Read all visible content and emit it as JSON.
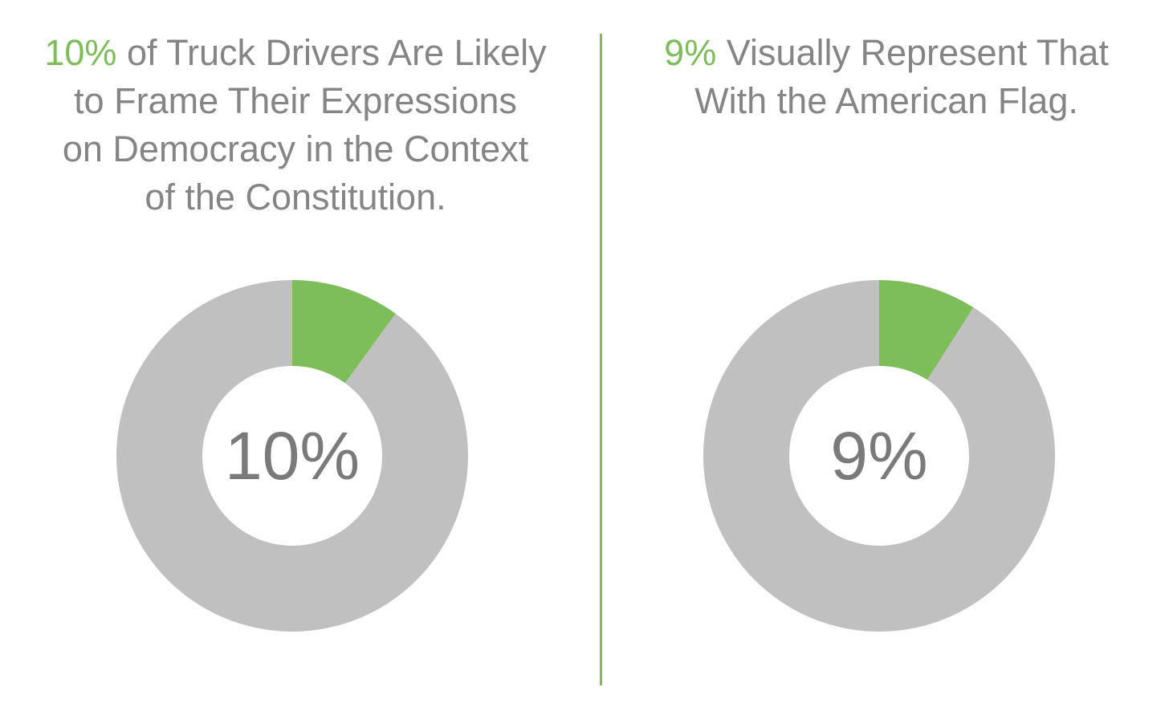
{
  "colors": {
    "accent": "#7dbd5a",
    "remainder": "#c0c0c0",
    "heading_text": "#858585",
    "center_text": "#7a7a7a"
  },
  "left": {
    "heading_accent": "10%",
    "heading_line1": " of Truck Drivers Are Likely",
    "heading_line2": "to Frame Their Expressions",
    "heading_line3": "on Democracy in the Context",
    "heading_line4": "of the Constitution."
  },
  "right": {
    "heading_accent": "9%",
    "heading_line1": " Visually Represent That",
    "heading_line2": "With the American Flag."
  },
  "chart_data": [
    {
      "type": "pie",
      "donut": true,
      "center_label": "10%",
      "slices": [
        {
          "label": "",
          "value": 10,
          "color": "#7dbd5a"
        },
        {
          "label": "",
          "value": 90,
          "color": "#c0c0c0"
        }
      ]
    },
    {
      "type": "pie",
      "donut": true,
      "center_label": "9%",
      "slices": [
        {
          "label": "",
          "value": 9,
          "color": "#7dbd5a"
        },
        {
          "label": "",
          "value": 91,
          "color": "#c0c0c0"
        }
      ]
    }
  ]
}
